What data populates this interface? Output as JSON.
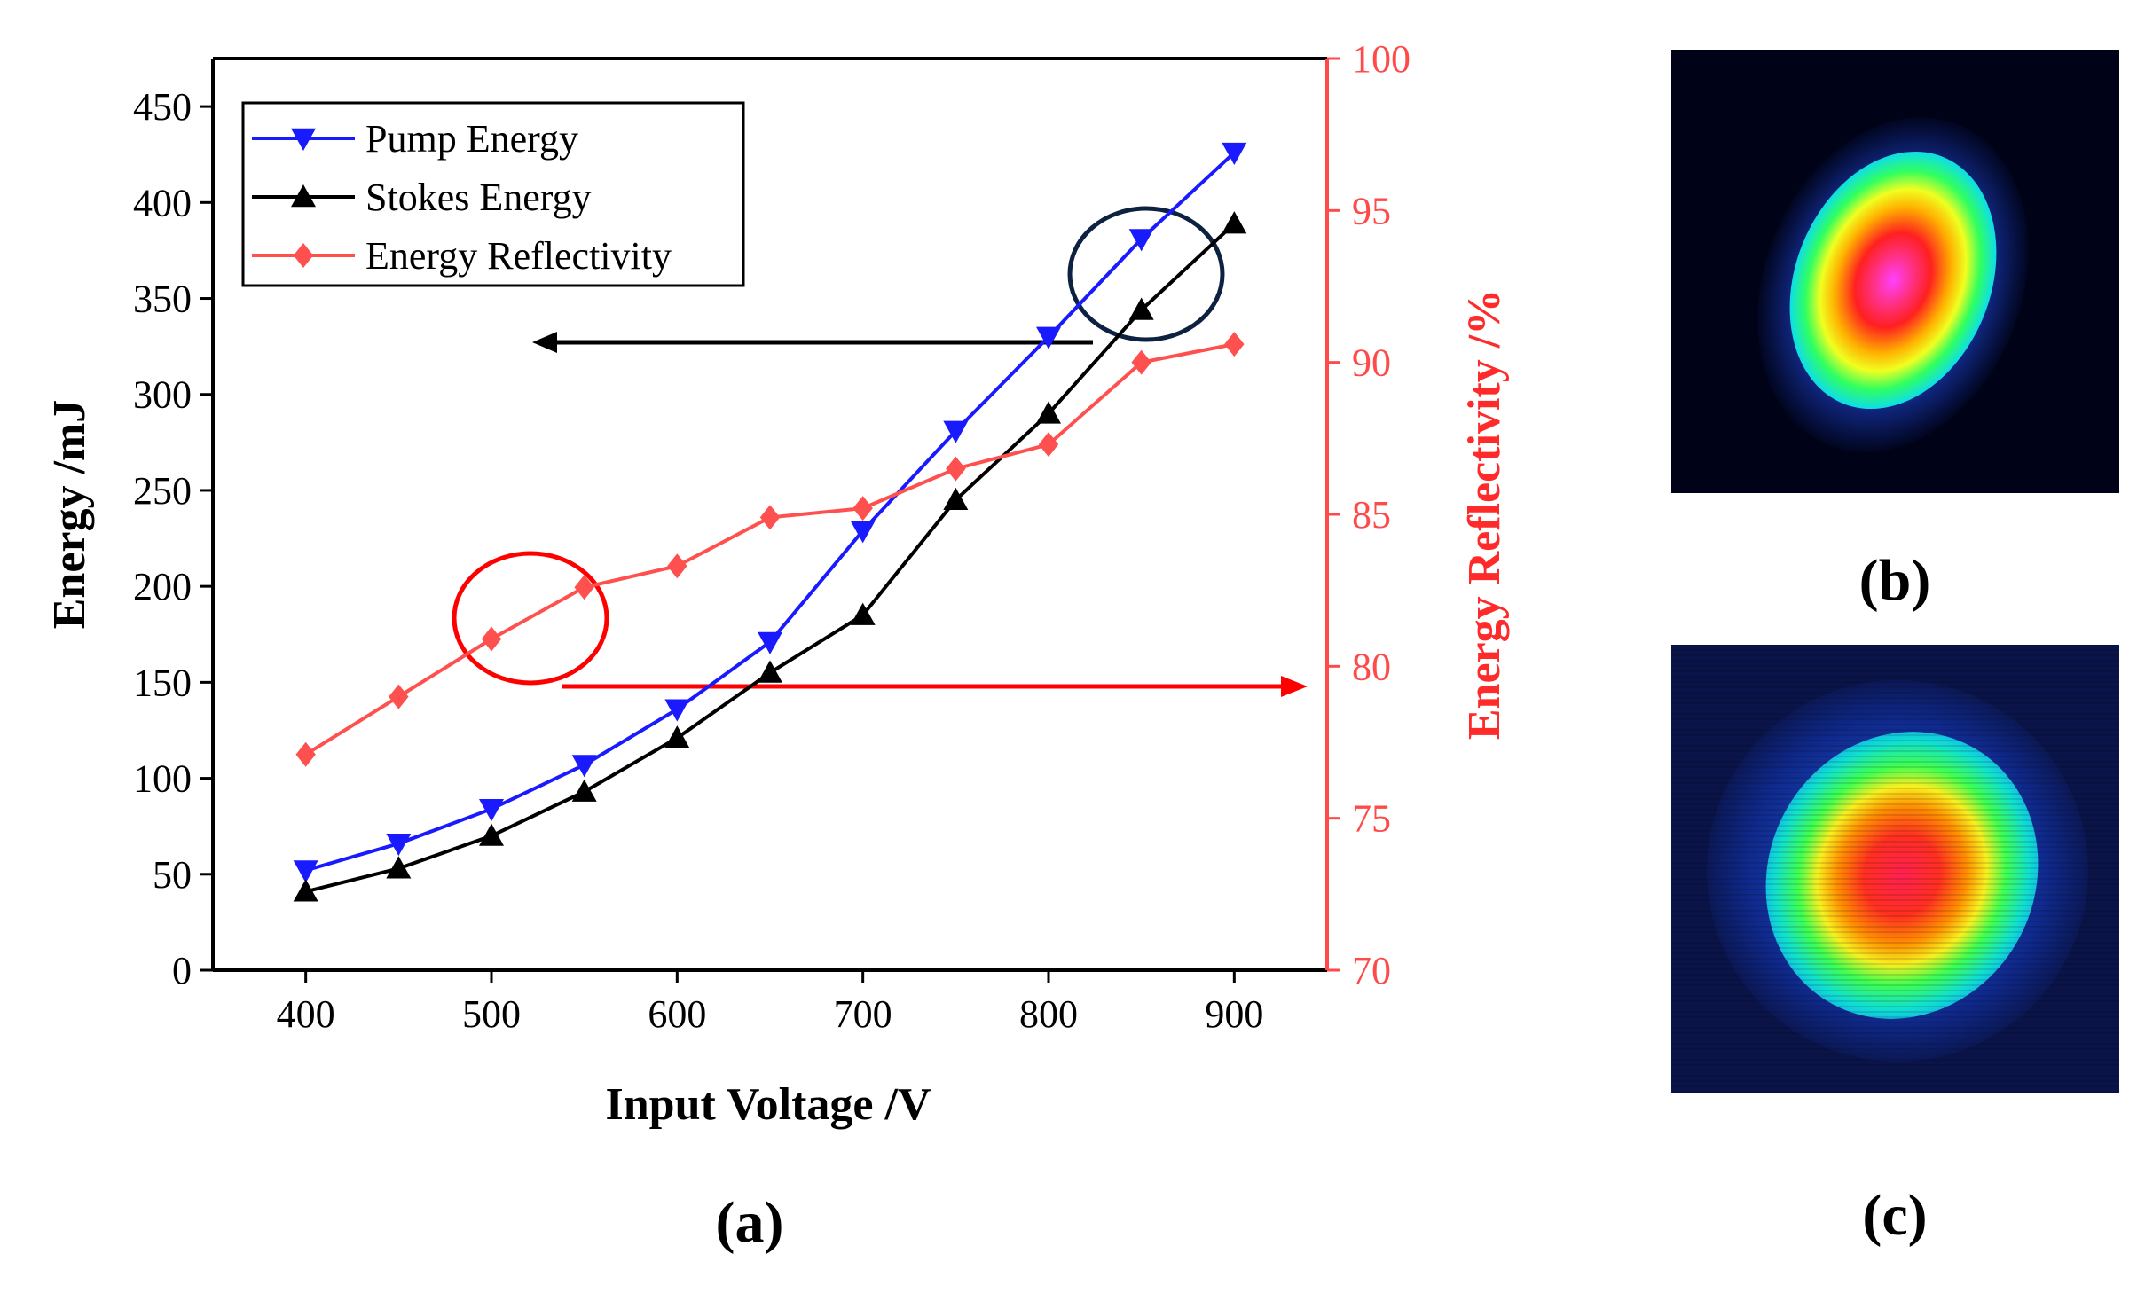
{
  "chart_data": {
    "type": "line",
    "xlabel": "Input Voltage /V",
    "ylabel": "Energy /mJ",
    "y2label": "Energy Reflectivity /%",
    "xlim": [
      350,
      950
    ],
    "ylim": [
      0,
      475
    ],
    "y2lim": [
      70,
      100
    ],
    "x_ticks": [
      400,
      500,
      600,
      700,
      800,
      900
    ],
    "y_ticks": [
      0,
      50,
      100,
      150,
      200,
      250,
      300,
      350,
      400,
      450
    ],
    "y2_ticks": [
      70,
      75,
      80,
      85,
      90,
      95,
      100
    ],
    "x": [
      400,
      450,
      500,
      550,
      600,
      650,
      700,
      750,
      800,
      850,
      900
    ],
    "series": [
      {
        "name": "Pump Energy",
        "axis": "left",
        "color": "#1a1aff",
        "marker": "triangle-down",
        "values": [
          52,
          66,
          84,
          107,
          136,
          171,
          229,
          281,
          330,
          381,
          426
        ]
      },
      {
        "name": "Stokes Energy",
        "axis": "left",
        "color": "#000000",
        "marker": "triangle-up",
        "values": [
          41,
          53,
          70,
          93,
          121,
          155,
          185,
          245,
          290,
          344,
          389
        ]
      },
      {
        "name": "Energy Reflectivity",
        "axis": "right",
        "color": "#ff5050",
        "marker": "diamond",
        "values": [
          77.1,
          79.0,
          80.9,
          82.6,
          83.3,
          84.9,
          85.2,
          86.5,
          87.3,
          90.0,
          90.6
        ]
      }
    ],
    "legend": "top-left",
    "grid": false,
    "annotations": [
      {
        "type": "ellipse",
        "color": "#0d2240",
        "target": "Pump/Stokes at 850 V",
        "arrow_to": "left"
      },
      {
        "type": "ellipse",
        "color": "#ff0000",
        "target": "Energy Reflectivity at 500 V",
        "arrow_to": "right"
      }
    ]
  },
  "panels": {
    "a": "(a)",
    "b": "(b)",
    "c": "(c)"
  },
  "colors": {
    "pump": "#1a1aff",
    "stokes": "#000000",
    "reflectivity": "#ff5050",
    "right_axis": "#ff4a4a"
  }
}
